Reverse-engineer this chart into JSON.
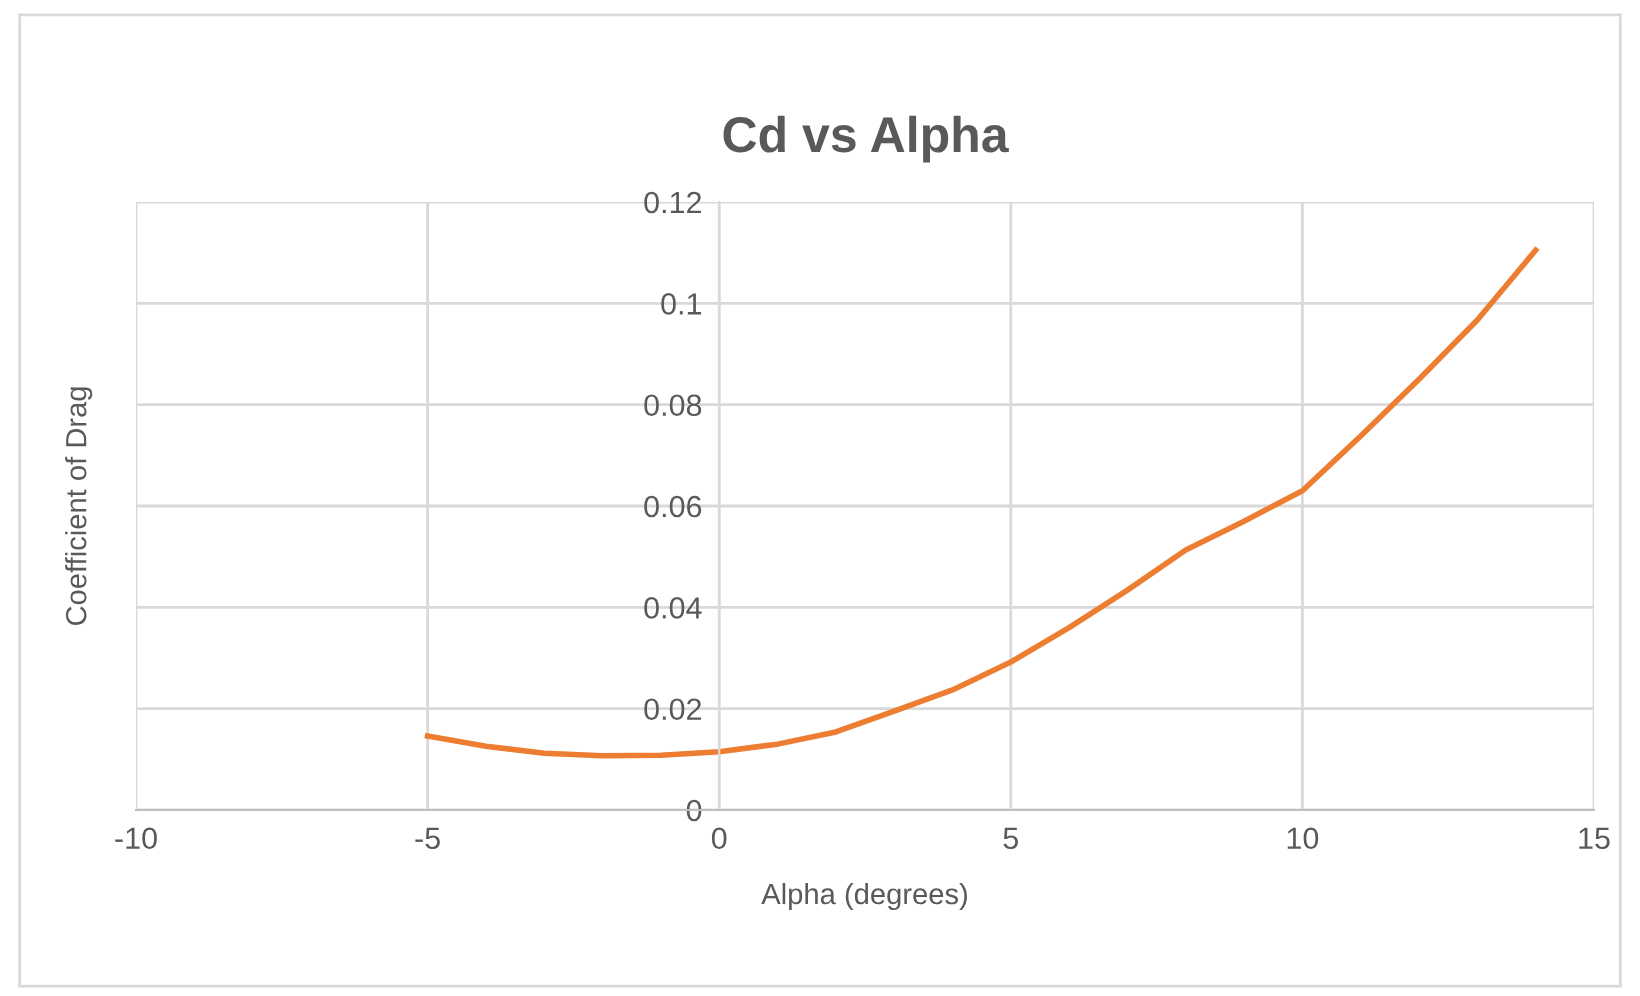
{
  "chart_data": {
    "type": "line",
    "title": "Cd vs Alpha",
    "xlabel": "Alpha (degrees)",
    "ylabel": "Coefficient of Drag",
    "series": [
      {
        "color": "#ed7d31",
        "x": [
          -5,
          -4,
          -3,
          -2,
          -1,
          0,
          1,
          2,
          3,
          4,
          5,
          6,
          7,
          8,
          9,
          10,
          11,
          12,
          13,
          14
        ],
        "values": [
          0.0146,
          0.0126,
          0.0112,
          0.0107,
          0.0108,
          0.0115,
          0.013,
          0.0154,
          0.0195,
          0.0237,
          0.0292,
          0.036,
          0.0434,
          0.0513,
          0.057,
          0.063,
          0.0738,
          0.085,
          0.0967,
          0.1105
        ]
      }
    ],
    "xlim": [
      -10,
      15
    ],
    "xticks": [
      -10,
      -5,
      0,
      5,
      10,
      15
    ],
    "ylim": [
      0,
      0.12
    ],
    "yticks": [
      0,
      0.02,
      0.04,
      0.06,
      0.08,
      0.1,
      0.12
    ],
    "grid": true,
    "marker": "none",
    "line_style": "solid"
  }
}
